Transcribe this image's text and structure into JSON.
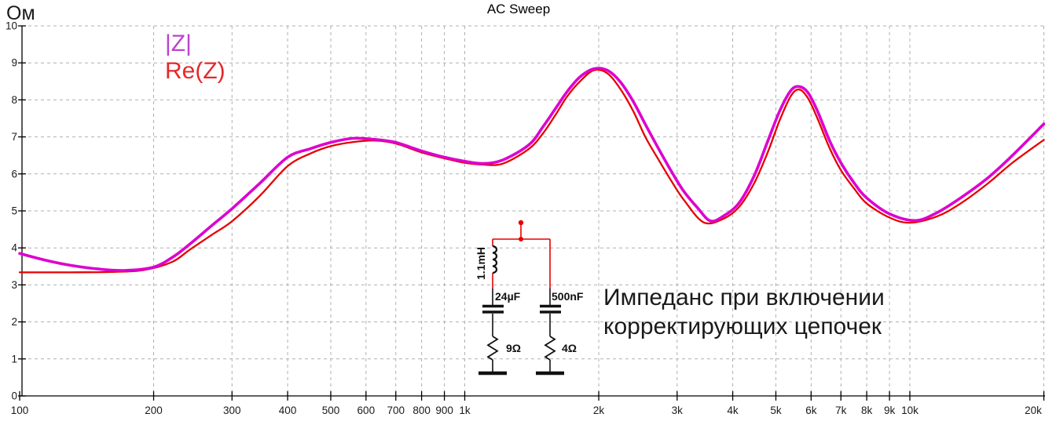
{
  "chart": {
    "title": "AC Sweep",
    "y_unit_label": "Ом",
    "legend": [
      {
        "label": "|Z|",
        "color": "#bb44cc"
      },
      {
        "label": "Re(Z)",
        "color": "#e62828"
      }
    ],
    "annotation": {
      "line1": "Импеданс при включении",
      "line2": "корректирующих цепочек"
    }
  },
  "chart_data": {
    "type": "line",
    "title": "AC Sweep",
    "xlabel": "",
    "ylabel": "Ом",
    "x_axis": {
      "scale": "log",
      "range": [
        100,
        20000
      ]
    },
    "y_axis": {
      "range": [
        0,
        10
      ]
    },
    "grid": "dashed-major",
    "legend_position": "top-left",
    "x_ticks": [
      {
        "f": 100,
        "label": "100"
      },
      {
        "f": 200,
        "label": "200"
      },
      {
        "f": 300,
        "label": "300"
      },
      {
        "f": 400,
        "label": "400"
      },
      {
        "f": 500,
        "label": "500"
      },
      {
        "f": 600,
        "label": "600"
      },
      {
        "f": 700,
        "label": "700"
      },
      {
        "f": 800,
        "label": "800"
      },
      {
        "f": 900,
        "label": "900"
      },
      {
        "f": 1000,
        "label": "1k"
      },
      {
        "f": 2000,
        "label": "2k"
      },
      {
        "f": 3000,
        "label": "3k"
      },
      {
        "f": 4000,
        "label": "4k"
      },
      {
        "f": 5000,
        "label": "5k"
      },
      {
        "f": 6000,
        "label": "6k"
      },
      {
        "f": 7000,
        "label": "7k"
      },
      {
        "f": 8000,
        "label": "8k"
      },
      {
        "f": 9000,
        "label": "9k"
      },
      {
        "f": 10000,
        "label": "10k"
      },
      {
        "f": 20000,
        "label": "20k"
      }
    ],
    "y_ticks": [
      {
        "v": 0,
        "label": "0"
      },
      {
        "v": 1,
        "label": "1"
      },
      {
        "v": 2,
        "label": "2"
      },
      {
        "v": 3,
        "label": "3"
      },
      {
        "v": 4,
        "label": "4"
      },
      {
        "v": 5,
        "label": "5"
      },
      {
        "v": 6,
        "label": "6"
      },
      {
        "v": 7,
        "label": "7"
      },
      {
        "v": 8,
        "label": "8"
      },
      {
        "v": 9,
        "label": "9"
      },
      {
        "v": 10,
        "label": "10"
      }
    ],
    "series": [
      {
        "name": "|Z|",
        "color": "#dd00d0",
        "width": 3.6,
        "points": [
          [
            100,
            3.85
          ],
          [
            115,
            3.66
          ],
          [
            130,
            3.53
          ],
          [
            150,
            3.43
          ],
          [
            172,
            3.39
          ],
          [
            200,
            3.48
          ],
          [
            222,
            3.77
          ],
          [
            241,
            4.1
          ],
          [
            270,
            4.6
          ],
          [
            300,
            5.06
          ],
          [
            346,
            5.74
          ],
          [
            400,
            6.45
          ],
          [
            450,
            6.68
          ],
          [
            500,
            6.85
          ],
          [
            560,
            6.96
          ],
          [
            630,
            6.93
          ],
          [
            700,
            6.85
          ],
          [
            800,
            6.62
          ],
          [
            900,
            6.45
          ],
          [
            1000,
            6.34
          ],
          [
            1100,
            6.28
          ],
          [
            1220,
            6.38
          ],
          [
            1395,
            6.79
          ],
          [
            1500,
            7.28
          ],
          [
            1600,
            7.77
          ],
          [
            1700,
            8.23
          ],
          [
            1815,
            8.62
          ],
          [
            1950,
            8.84
          ],
          [
            2090,
            8.8
          ],
          [
            2235,
            8.49
          ],
          [
            2390,
            7.96
          ],
          [
            2545,
            7.34
          ],
          [
            2720,
            6.7
          ],
          [
            2915,
            6.06
          ],
          [
            3105,
            5.53
          ],
          [
            3330,
            5.09
          ],
          [
            3560,
            4.73
          ],
          [
            3800,
            4.85
          ],
          [
            4130,
            5.21
          ],
          [
            4470,
            5.95
          ],
          [
            4800,
            6.9
          ],
          [
            5100,
            7.7
          ],
          [
            5400,
            8.25
          ],
          [
            5640,
            8.36
          ],
          [
            5900,
            8.2
          ],
          [
            6200,
            7.7
          ],
          [
            6600,
            6.9
          ],
          [
            7000,
            6.3
          ],
          [
            7500,
            5.75
          ],
          [
            8000,
            5.35
          ],
          [
            9000,
            4.92
          ],
          [
            10300,
            4.74
          ],
          [
            11500,
            4.95
          ],
          [
            13000,
            5.35
          ],
          [
            15000,
            5.9
          ],
          [
            17000,
            6.5
          ],
          [
            20000,
            7.35
          ]
        ]
      },
      {
        "name": "Re(Z)",
        "color": "#e60000",
        "width": 2.3,
        "points": [
          [
            100,
            3.34
          ],
          [
            130,
            3.34
          ],
          [
            160,
            3.35
          ],
          [
            190,
            3.4
          ],
          [
            220,
            3.62
          ],
          [
            241,
            3.95
          ],
          [
            270,
            4.35
          ],
          [
            300,
            4.72
          ],
          [
            346,
            5.4
          ],
          [
            400,
            6.21
          ],
          [
            450,
            6.55
          ],
          [
            500,
            6.75
          ],
          [
            560,
            6.86
          ],
          [
            630,
            6.9
          ],
          [
            700,
            6.82
          ],
          [
            800,
            6.58
          ],
          [
            900,
            6.42
          ],
          [
            1000,
            6.3
          ],
          [
            1100,
            6.25
          ],
          [
            1220,
            6.28
          ],
          [
            1395,
            6.68
          ],
          [
            1500,
            7.1
          ],
          [
            1600,
            7.6
          ],
          [
            1700,
            8.1
          ],
          [
            1815,
            8.5
          ],
          [
            1950,
            8.8
          ],
          [
            2090,
            8.72
          ],
          [
            2235,
            8.3
          ],
          [
            2390,
            7.7
          ],
          [
            2545,
            7.0
          ],
          [
            2720,
            6.4
          ],
          [
            2915,
            5.8
          ],
          [
            3105,
            5.3
          ],
          [
            3440,
            4.69
          ],
          [
            3800,
            4.78
          ],
          [
            4130,
            5.1
          ],
          [
            4470,
            5.75
          ],
          [
            4800,
            6.6
          ],
          [
            5100,
            7.45
          ],
          [
            5400,
            8.1
          ],
          [
            5640,
            8.28
          ],
          [
            5900,
            8.05
          ],
          [
            6200,
            7.5
          ],
          [
            6600,
            6.7
          ],
          [
            7000,
            6.1
          ],
          [
            7500,
            5.6
          ],
          [
            8000,
            5.2
          ],
          [
            9000,
            4.82
          ],
          [
            10000,
            4.68
          ],
          [
            11500,
            4.85
          ],
          [
            13000,
            5.2
          ],
          [
            15000,
            5.75
          ],
          [
            17000,
            6.3
          ],
          [
            20000,
            6.92
          ]
        ]
      }
    ]
  },
  "circuit": {
    "inductor_value": "1.1mH",
    "capacitor_left_value": "24µF",
    "capacitor_right_value": "500nF",
    "resistor_left_value": "9Ω",
    "resistor_right_value": "4Ω"
  }
}
